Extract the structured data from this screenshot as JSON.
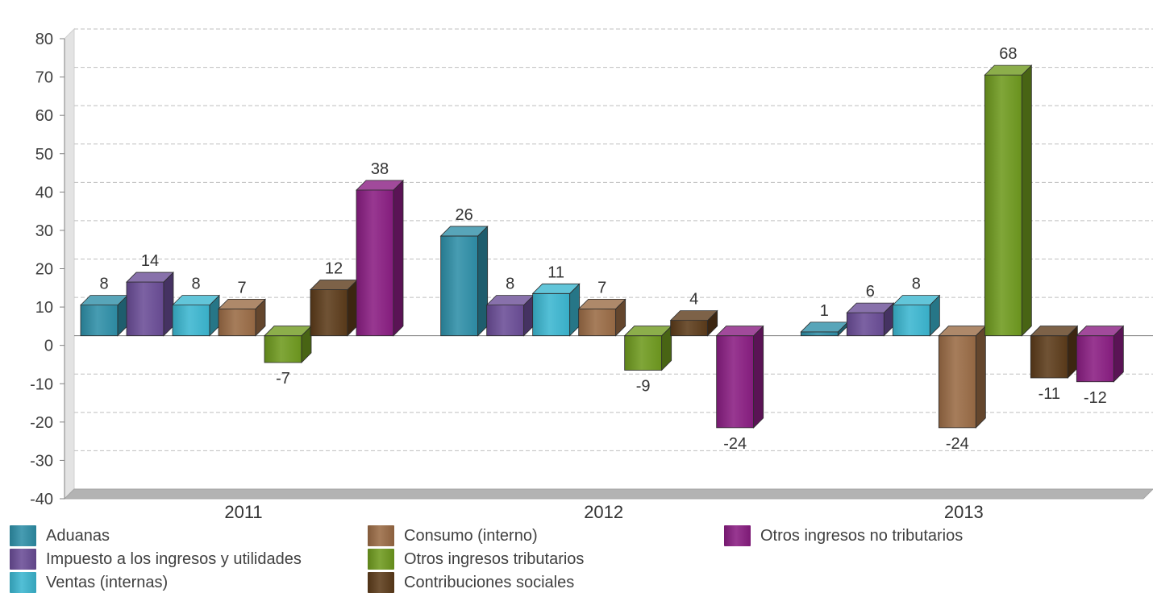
{
  "chart_data": {
    "type": "bar",
    "categories": [
      "2011",
      "2012",
      "2013"
    ],
    "series": [
      {
        "name": "Aduanas",
        "color": "#2e8fa8",
        "values": [
          8,
          26,
          1
        ]
      },
      {
        "name": "Impuesto a los ingresos y utilidades",
        "color": "#6a4d96",
        "values": [
          14,
          8,
          6
        ]
      },
      {
        "name": "Ventas (internas)",
        "color": "#3bb6d0",
        "values": [
          8,
          11,
          8
        ]
      },
      {
        "name": "Consumo (interno)",
        "color": "#9a6b45",
        "values": [
          7,
          7,
          -24
        ]
      },
      {
        "name": "Otros ingresos tributarios",
        "color": "#6f9a1e",
        "values": [
          -7,
          -9,
          68
        ]
      },
      {
        "name": "Contribuciones sociales",
        "color": "#5c3b1a",
        "values": [
          12,
          4,
          -11
        ]
      },
      {
        "name": "Otros ingresos no tributarios",
        "color": "#8a1d82",
        "values": [
          38,
          -24,
          -12
        ]
      }
    ],
    "ylim": [
      -40,
      80
    ],
    "yticks": [
      "-40",
      "-30",
      "-20",
      "-10",
      "0",
      "10",
      "20",
      "30",
      "40",
      "50",
      "60",
      "70",
      "80"
    ],
    "grid": true,
    "style": "3d-clustered",
    "legend_position": "bottom"
  }
}
